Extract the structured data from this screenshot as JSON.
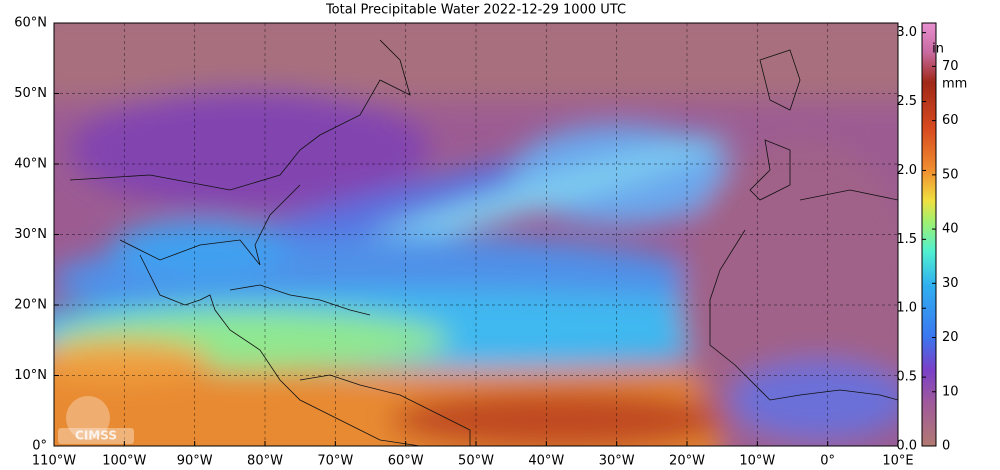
{
  "title": "Total Precipitable Water  2022-12-29 1000 UTC",
  "map": {
    "lonlim": [
      -110,
      10
    ],
    "latlim": [
      0,
      60
    ],
    "lon_ticks": [
      {
        "value": -110,
        "label": "110°W"
      },
      {
        "value": -100,
        "label": "100°W"
      },
      {
        "value": -90,
        "label": "90°W"
      },
      {
        "value": -80,
        "label": "80°W"
      },
      {
        "value": -70,
        "label": "70°W"
      },
      {
        "value": -60,
        "label": "60°W"
      },
      {
        "value": -50,
        "label": "50°W"
      },
      {
        "value": -40,
        "label": "40°W"
      },
      {
        "value": -30,
        "label": "30°W"
      },
      {
        "value": -20,
        "label": "20°W"
      },
      {
        "value": -10,
        "label": "10°W"
      },
      {
        "value": 0,
        "label": "0°"
      },
      {
        "value": 10,
        "label": "10°E"
      }
    ],
    "lat_ticks": [
      {
        "value": 0,
        "label": "0°"
      },
      {
        "value": 10,
        "label": "10°N"
      },
      {
        "value": 20,
        "label": "20°N"
      },
      {
        "value": 30,
        "label": "30°N"
      },
      {
        "value": 40,
        "label": "40°N"
      },
      {
        "value": 50,
        "label": "50°N"
      },
      {
        "value": 60,
        "label": "60°N"
      }
    ],
    "grid": true,
    "logo": "CIMSS"
  },
  "colorbar": {
    "left_unit": "in",
    "right_unit": "mm",
    "in_lim": [
      0,
      3.07
    ],
    "in_ticks": [
      {
        "value": 0,
        "label": "0.0"
      },
      {
        "value": 0.5,
        "label": "0.5"
      },
      {
        "value": 1,
        "label": "1.0"
      },
      {
        "value": 1.5,
        "label": "1.5"
      },
      {
        "value": 2,
        "label": "2.0"
      },
      {
        "value": 2.5,
        "label": "2.5"
      },
      {
        "value": 3,
        "label": "3.0"
      }
    ],
    "mm_lim": [
      0,
      78
    ],
    "mm_ticks": [
      0,
      10,
      20,
      30,
      40,
      50,
      60,
      70
    ]
  }
}
